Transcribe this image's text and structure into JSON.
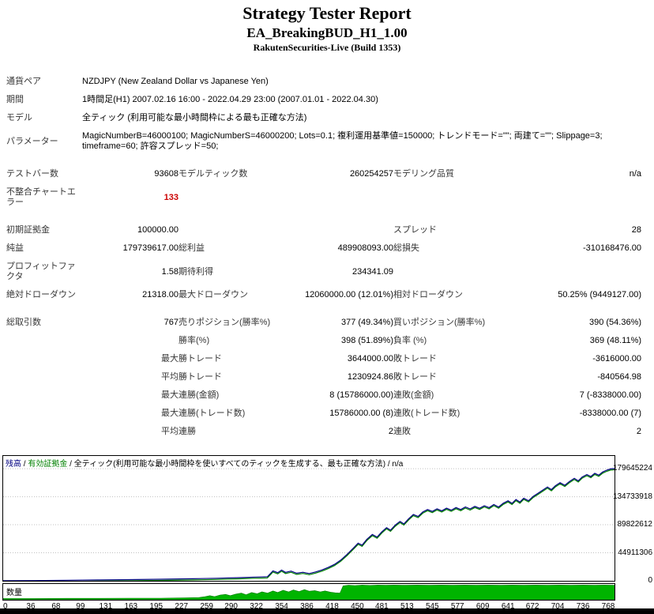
{
  "header": {
    "title": "Strategy Tester Report",
    "subtitle": "EA_BreakingBUD_H1_1.00",
    "broker": "RakutenSecurities-Live (Build 1353)"
  },
  "colors": {
    "balance_line": "#000080",
    "equity_line": "#008000",
    "volume_fill": "#00b400",
    "volume_stroke": "#007800",
    "error_text": "#cc0000",
    "label_text": "#373737",
    "grid_line": "#c0c0c0"
  },
  "report": {
    "rows": [
      {
        "cells": [
          {
            "c": "label",
            "t": "通貨ペア"
          },
          {
            "c": "value-left",
            "span": 5,
            "t": "NZDJPY (New Zealand Dollar vs Japanese Yen)"
          }
        ]
      },
      {
        "cells": [
          {
            "c": "label",
            "t": "期間"
          },
          {
            "c": "value-left",
            "span": 5,
            "t": "1時間足(H1) 2007.02.16 16:00 - 2022.04.29 23:00 (2007.01.01 - 2022.04.30)"
          }
        ]
      },
      {
        "cells": [
          {
            "c": "label",
            "t": "モデル"
          },
          {
            "c": "value-left",
            "span": 5,
            "t": "全ティック (利用可能な最小時間枠による最も正確な方法)"
          }
        ]
      },
      {
        "cells": [
          {
            "c": "label",
            "t": "パラメーター"
          },
          {
            "c": "value-left",
            "span": 5,
            "t": "MagicNumberB=46000100; MagicNumberS=46000200; Lots=0.1; 複利運用基準値=150000; トレンドモード=\"\"; 両建て=\"\"; Slippage=3; timeframe=60; 許容スプレッド=50;"
          }
        ]
      },
      {
        "spacer": true
      },
      {
        "cells": [
          {
            "c": "label",
            "t": "テストバー数"
          },
          {
            "c": "value",
            "t": "93608"
          },
          {
            "c": "label2",
            "t": "モデルティック数"
          },
          {
            "c": "value",
            "t": "260254257"
          },
          {
            "c": "label2",
            "t": "モデリング品質"
          },
          {
            "c": "value",
            "t": "n/a"
          }
        ]
      },
      {
        "cells": [
          {
            "c": "label",
            "t": "不整合チャートエラー"
          },
          {
            "c": "value error",
            "t": "133"
          },
          {
            "c": "label2",
            "t": ""
          },
          {
            "c": "value",
            "t": ""
          },
          {
            "c": "label2",
            "t": ""
          },
          {
            "c": "value",
            "t": ""
          }
        ]
      },
      {
        "spacer": true
      },
      {
        "cells": [
          {
            "c": "label",
            "t": "初期証拠金"
          },
          {
            "c": "value",
            "t": "100000.00"
          },
          {
            "c": "label2",
            "t": ""
          },
          {
            "c": "value",
            "t": ""
          },
          {
            "c": "label2",
            "t": "スプレッド"
          },
          {
            "c": "value",
            "t": "28"
          }
        ]
      },
      {
        "cells": [
          {
            "c": "label",
            "t": "純益"
          },
          {
            "c": "value",
            "t": "179739617.00"
          },
          {
            "c": "label2",
            "t": "総利益"
          },
          {
            "c": "value",
            "t": "489908093.00"
          },
          {
            "c": "label2",
            "t": "総損失"
          },
          {
            "c": "value",
            "t": "-310168476.00"
          }
        ]
      },
      {
        "cells": [
          {
            "c": "label",
            "t": "プロフィットファクタ"
          },
          {
            "c": "value",
            "t": "1.58"
          },
          {
            "c": "label2",
            "t": "期待利得"
          },
          {
            "c": "value",
            "t": "234341.09"
          },
          {
            "c": "label2",
            "t": ""
          },
          {
            "c": "value",
            "t": ""
          }
        ]
      },
      {
        "cells": [
          {
            "c": "label",
            "t": "絶対ドローダウン"
          },
          {
            "c": "value",
            "t": "21318.00"
          },
          {
            "c": "label2",
            "t": "最大ドローダウン"
          },
          {
            "c": "value",
            "t": "12060000.00 (12.01%)"
          },
          {
            "c": "label2",
            "t": "相対ドローダウン"
          },
          {
            "c": "value",
            "t": "50.25% (9449127.00)"
          }
        ]
      },
      {
        "spacer": true
      },
      {
        "cells": [
          {
            "c": "label",
            "t": "総取引数"
          },
          {
            "c": "value",
            "t": "767"
          },
          {
            "c": "label2",
            "t": "売りポジション(勝率%)"
          },
          {
            "c": "value",
            "t": "377 (49.34%)"
          },
          {
            "c": "label2",
            "t": "買いポジション(勝率%)"
          },
          {
            "c": "value",
            "t": "390 (54.36%)"
          }
        ]
      },
      {
        "cells": [
          {
            "c": "label",
            "t": ""
          },
          {
            "c": "value",
            "t": ""
          },
          {
            "c": "label2",
            "t": "勝率(%)"
          },
          {
            "c": "value",
            "t": "398 (51.89%)"
          },
          {
            "c": "label2",
            "t": "負率 (%)"
          },
          {
            "c": "value",
            "t": "369 (48.11%)"
          }
        ]
      },
      {
        "cells": [
          {
            "c": "label",
            "t": ""
          },
          {
            "c": "rlabel",
            "t": "最大"
          },
          {
            "c": "label2",
            "t": "勝トレード"
          },
          {
            "c": "value",
            "t": "3644000.00"
          },
          {
            "c": "label2",
            "t": "敗トレード"
          },
          {
            "c": "value",
            "t": "-3616000.00"
          }
        ]
      },
      {
        "cells": [
          {
            "c": "label",
            "t": ""
          },
          {
            "c": "rlabel",
            "t": "平均"
          },
          {
            "c": "label2",
            "t": "勝トレード"
          },
          {
            "c": "value",
            "t": "1230924.86"
          },
          {
            "c": "label2",
            "t": "敗トレード"
          },
          {
            "c": "value",
            "t": "-840564.98"
          }
        ]
      },
      {
        "cells": [
          {
            "c": "label",
            "t": ""
          },
          {
            "c": "rlabel",
            "t": "最大"
          },
          {
            "c": "label2",
            "t": "連勝(金額)"
          },
          {
            "c": "value",
            "t": "8 (15786000.00)"
          },
          {
            "c": "label2",
            "t": "連敗(金額)"
          },
          {
            "c": "value",
            "t": "7 (-8338000.00)"
          }
        ]
      },
      {
        "cells": [
          {
            "c": "label",
            "t": ""
          },
          {
            "c": "rlabel",
            "t": "最大"
          },
          {
            "c": "label2",
            "t": "連勝(トレード数)"
          },
          {
            "c": "value",
            "t": "15786000.00 (8)"
          },
          {
            "c": "label2",
            "t": "連敗(トレード数)"
          },
          {
            "c": "value",
            "t": "-8338000.00 (7)"
          }
        ]
      },
      {
        "cells": [
          {
            "c": "label",
            "t": ""
          },
          {
            "c": "rlabel",
            "t": "平均"
          },
          {
            "c": "label2",
            "t": "連勝"
          },
          {
            "c": "value",
            "t": "2"
          },
          {
            "c": "label2",
            "t": "連敗"
          },
          {
            "c": "value",
            "t": "2"
          }
        ]
      }
    ]
  },
  "chart_data": {
    "type": "line",
    "legend": {
      "balance": "残高",
      "equity": "有効証拠金",
      "model": "全ティック(利用可能な最小時間枠を使いすべてのティックを生成する、最も正確な方法)",
      "quality": "n/a",
      "separator": " / "
    },
    "volume_label": "数量",
    "y_max": 200000000,
    "x_max": 775,
    "y_ticks": [
      {
        "v": 179645224,
        "label": "179645224"
      },
      {
        "v": 134733918,
        "label": "134733918"
      },
      {
        "v": 89822612,
        "label": "89822612"
      },
      {
        "v": 44911306,
        "label": "44911306"
      },
      {
        "v": 0,
        "label": "0"
      }
    ],
    "x_ticks": [
      0,
      36,
      68,
      99,
      131,
      163,
      195,
      227,
      259,
      290,
      322,
      354,
      386,
      418,
      450,
      481,
      513,
      545,
      577,
      609,
      641,
      672,
      704,
      736,
      768
    ],
    "balance_series": [
      [
        0,
        100000
      ],
      [
        40,
        400000
      ],
      [
        80,
        900000
      ],
      [
        120,
        1400000
      ],
      [
        160,
        1900000
      ],
      [
        200,
        2500000
      ],
      [
        240,
        3300000
      ],
      [
        270,
        4100000
      ],
      [
        300,
        5100000
      ],
      [
        320,
        5900000
      ],
      [
        335,
        6600000
      ],
      [
        342,
        16000000
      ],
      [
        348,
        13000000
      ],
      [
        353,
        17200000
      ],
      [
        358,
        13500000
      ],
      [
        365,
        15600000
      ],
      [
        372,
        12100000
      ],
      [
        380,
        13700000
      ],
      [
        388,
        11600000
      ],
      [
        396,
        14200000
      ],
      [
        404,
        17300000
      ],
      [
        412,
        21400000
      ],
      [
        420,
        26300000
      ],
      [
        428,
        33200000
      ],
      [
        436,
        42300000
      ],
      [
        444,
        52400000
      ],
      [
        450,
        60200000
      ],
      [
        455,
        57100000
      ],
      [
        461,
        66300000
      ],
      [
        468,
        74200000
      ],
      [
        474,
        70100000
      ],
      [
        480,
        78300000
      ],
      [
        486,
        85200000
      ],
      [
        491,
        81100000
      ],
      [
        497,
        89300000
      ],
      [
        503,
        95200000
      ],
      [
        508,
        91100000
      ],
      [
        514,
        99300000
      ],
      [
        520,
        106200000
      ],
      [
        526,
        103100000
      ],
      [
        532,
        110300000
      ],
      [
        538,
        114200000
      ],
      [
        544,
        111100000
      ],
      [
        550,
        115300000
      ],
      [
        556,
        112200000
      ],
      [
        562,
        116300000
      ],
      [
        568,
        113200000
      ],
      [
        574,
        117300000
      ],
      [
        580,
        114200000
      ],
      [
        586,
        118300000
      ],
      [
        592,
        115200000
      ],
      [
        598,
        119300000
      ],
      [
        604,
        116200000
      ],
      [
        610,
        120300000
      ],
      [
        616,
        117200000
      ],
      [
        622,
        122300000
      ],
      [
        628,
        118200000
      ],
      [
        634,
        124300000
      ],
      [
        640,
        128200000
      ],
      [
        645,
        124100000
      ],
      [
        650,
        130300000
      ],
      [
        655,
        126200000
      ],
      [
        660,
        132300000
      ],
      [
        666,
        128200000
      ],
      [
        672,
        135300000
      ],
      [
        678,
        140200000
      ],
      [
        684,
        145300000
      ],
      [
        690,
        150200000
      ],
      [
        695,
        146100000
      ],
      [
        700,
        152300000
      ],
      [
        706,
        157200000
      ],
      [
        712,
        153100000
      ],
      [
        718,
        159300000
      ],
      [
        724,
        164200000
      ],
      [
        729,
        160100000
      ],
      [
        734,
        166300000
      ],
      [
        740,
        170200000
      ],
      [
        745,
        167100000
      ],
      [
        750,
        172300000
      ],
      [
        755,
        169200000
      ],
      [
        760,
        174300000
      ],
      [
        765,
        177200000
      ],
      [
        770,
        179300000
      ],
      [
        775,
        179839617
      ]
    ],
    "volume_series": [
      [
        0,
        8
      ],
      [
        40,
        8
      ],
      [
        80,
        9
      ],
      [
        120,
        9
      ],
      [
        160,
        10
      ],
      [
        200,
        10
      ],
      [
        230,
        12
      ],
      [
        248,
        14
      ],
      [
        256,
        20
      ],
      [
        262,
        26
      ],
      [
        268,
        20
      ],
      [
        275,
        30
      ],
      [
        282,
        34
      ],
      [
        288,
        26
      ],
      [
        295,
        36
      ],
      [
        302,
        42
      ],
      [
        308,
        32
      ],
      [
        315,
        46
      ],
      [
        322,
        38
      ],
      [
        328,
        50
      ],
      [
        335,
        42
      ],
      [
        342,
        56
      ],
      [
        348,
        46
      ],
      [
        355,
        60
      ],
      [
        362,
        50
      ],
      [
        368,
        62
      ],
      [
        375,
        52
      ],
      [
        382,
        64
      ],
      [
        388,
        54
      ],
      [
        395,
        58
      ],
      [
        402,
        50
      ],
      [
        408,
        56
      ],
      [
        415,
        48
      ],
      [
        421,
        44
      ],
      [
        427,
        42
      ],
      [
        431,
        88
      ],
      [
        438,
        92
      ],
      [
        446,
        90
      ],
      [
        455,
        93
      ],
      [
        465,
        91
      ],
      [
        475,
        93
      ],
      [
        485,
        92
      ],
      [
        495,
        93
      ],
      [
        510,
        92
      ],
      [
        525,
        93
      ],
      [
        540,
        92
      ],
      [
        555,
        93
      ],
      [
        570,
        92
      ],
      [
        585,
        93
      ],
      [
        600,
        92
      ],
      [
        615,
        93
      ],
      [
        630,
        92
      ],
      [
        645,
        93
      ],
      [
        660,
        92
      ],
      [
        675,
        93
      ],
      [
        690,
        92
      ],
      [
        705,
        93
      ],
      [
        720,
        92
      ],
      [
        735,
        93
      ],
      [
        750,
        92
      ],
      [
        762,
        93
      ],
      [
        775,
        92
      ]
    ]
  }
}
